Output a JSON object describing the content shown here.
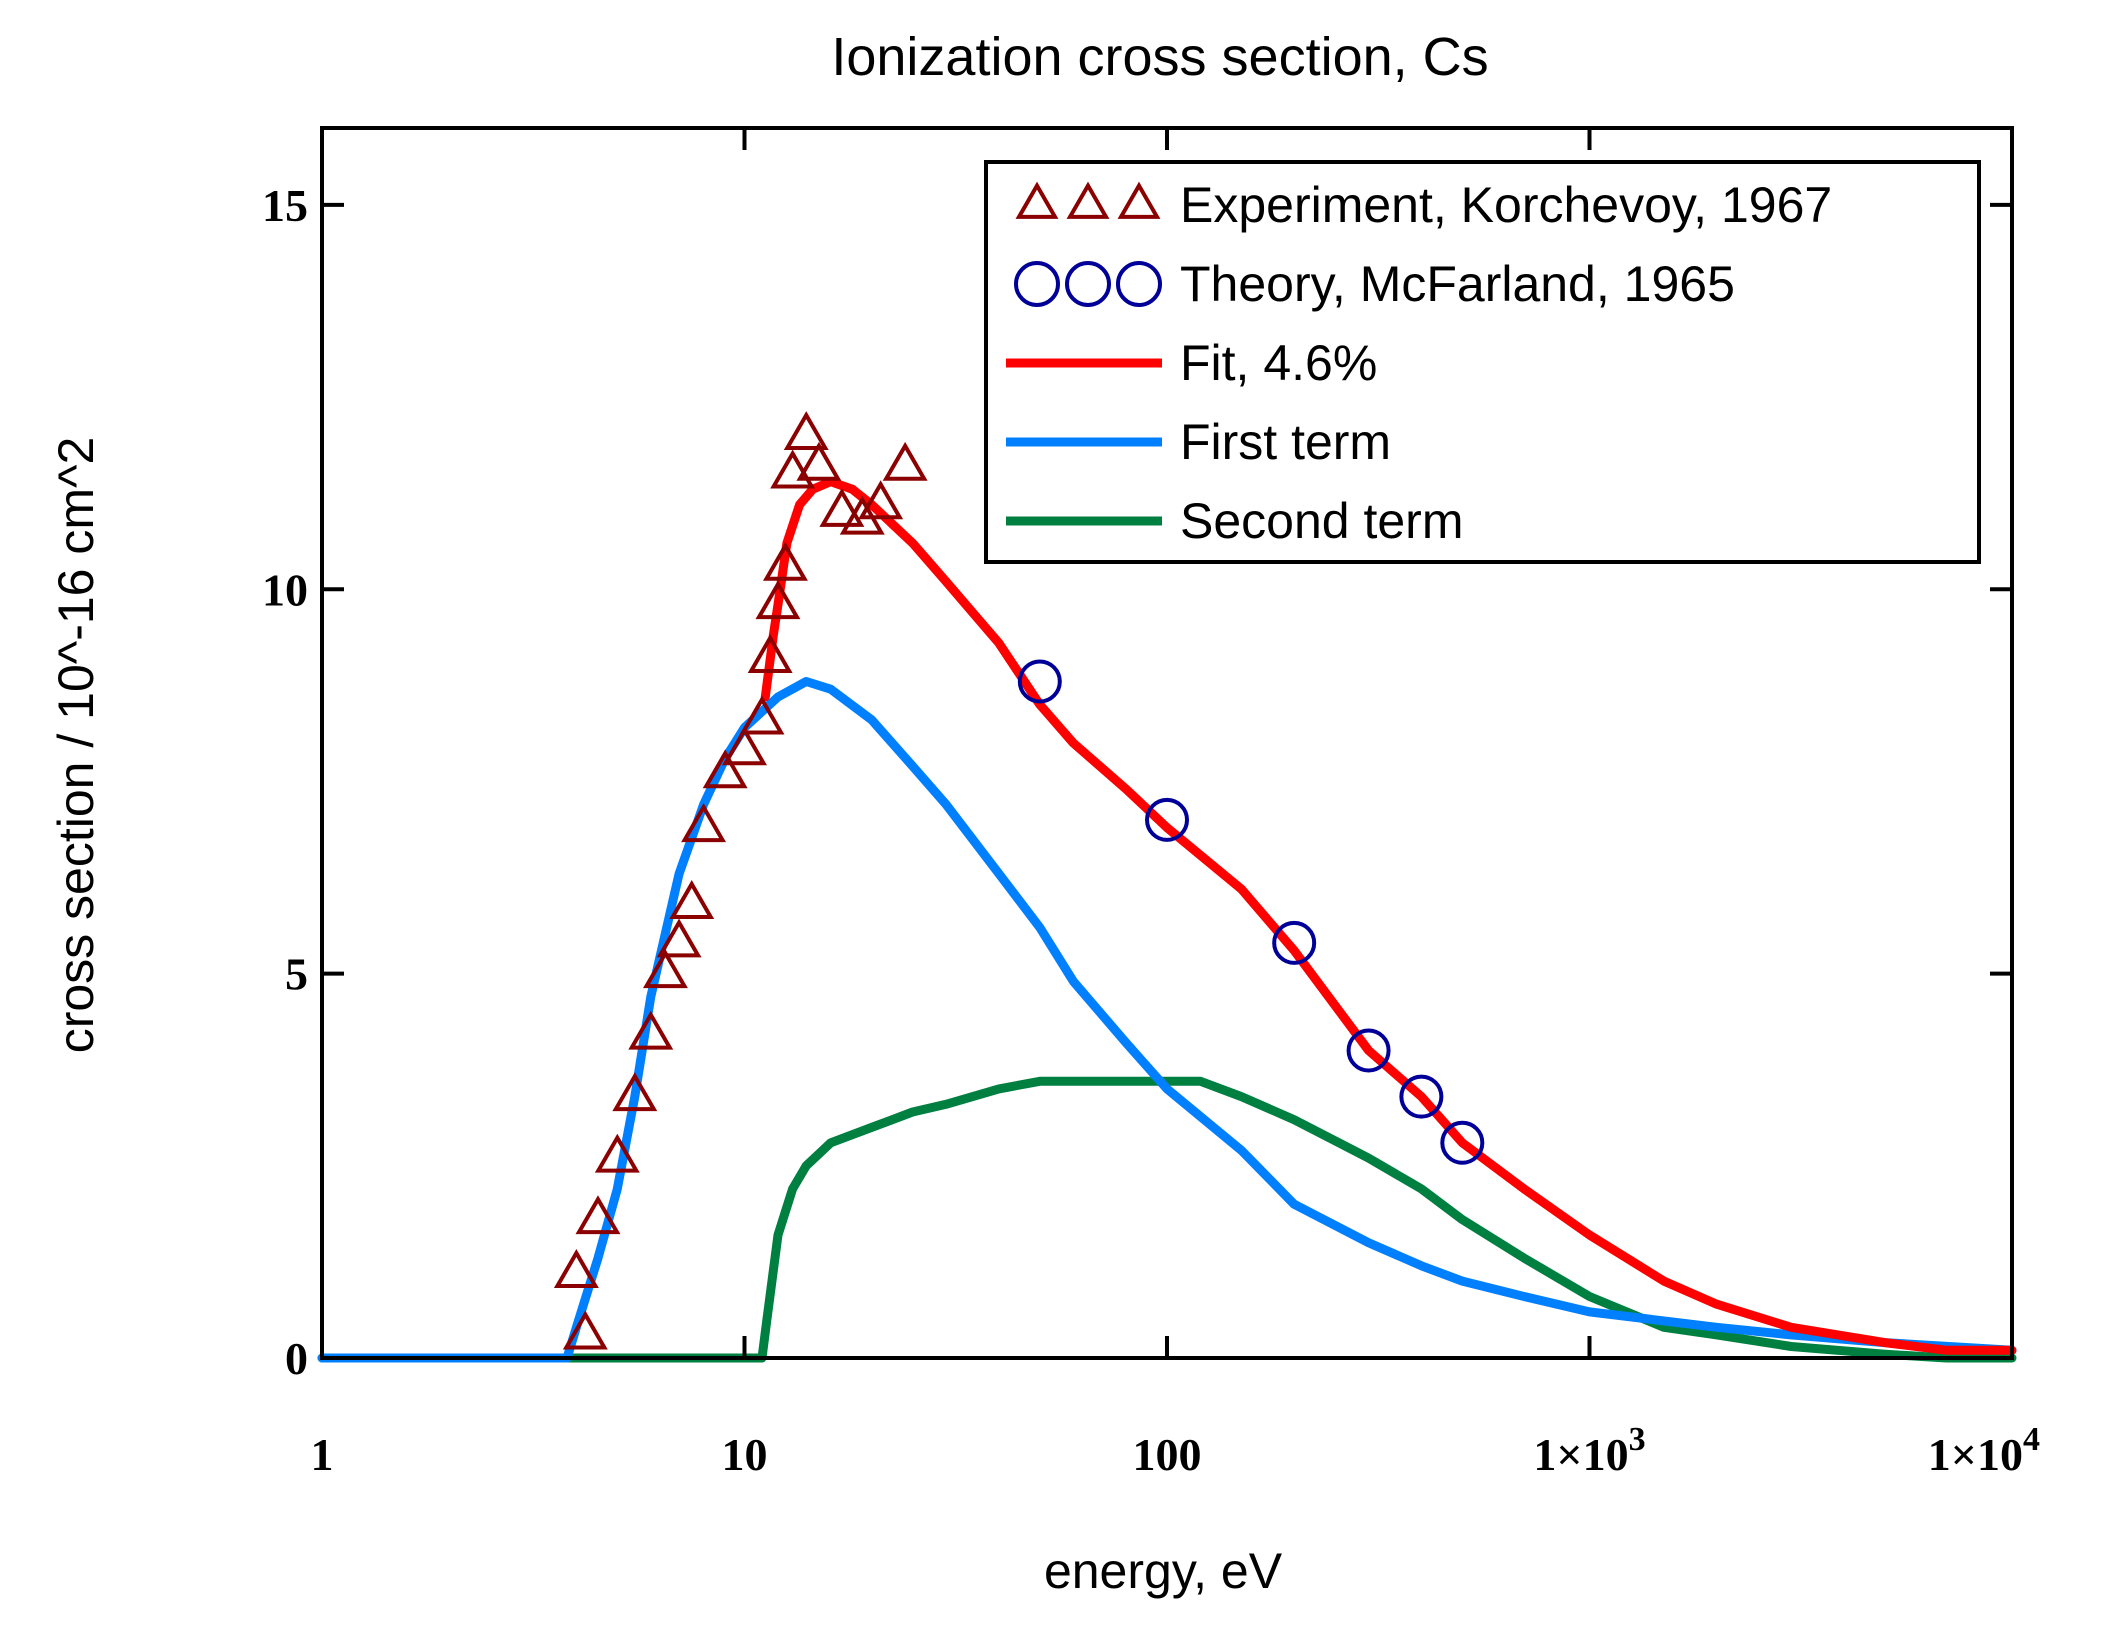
{
  "chart_data": {
    "type": "line",
    "title": "Ionization cross section, Cs",
    "xlabel": "energy, eV",
    "ylabel": "cross section / 10^-16 cm^2",
    "xscale": "log",
    "xlim": [
      1,
      10000
    ],
    "ylim": [
      0,
      16
    ],
    "grid": false,
    "legend_position": "top-right",
    "x_ticks": [
      {
        "value": 1,
        "label": "1"
      },
      {
        "value": 10,
        "label": "10"
      },
      {
        "value": 100,
        "label": "100"
      },
      {
        "value": 1000,
        "label": "1×10",
        "exp": "3"
      },
      {
        "value": 10000,
        "label": "1×10",
        "exp": "4"
      }
    ],
    "y_ticks": [
      {
        "value": 0,
        "label": "0"
      },
      {
        "value": 5,
        "label": "5"
      },
      {
        "value": 10,
        "label": "10"
      },
      {
        "value": 15,
        "label": "15"
      }
    ],
    "series": [
      {
        "name": "Experiment, Korchevoy, 1967",
        "kind": "markers",
        "marker": "triangle",
        "color": "#8b0000",
        "x": [
          4.2,
          4.0,
          4.5,
          5.0,
          5.5,
          6.0,
          6.5,
          7.0,
          7.5,
          8.0,
          9.0,
          10.0,
          11.0,
          11.5,
          12.0,
          12.5,
          13.0,
          14.0,
          15.0,
          17.0,
          19.0,
          21.0,
          24.0
        ],
        "y": [
          0.3,
          1.1,
          1.8,
          2.6,
          3.4,
          4.2,
          5.0,
          5.4,
          5.9,
          6.9,
          7.6,
          7.9,
          8.3,
          9.1,
          9.8,
          10.3,
          11.5,
          12.0,
          11.6,
          11.0,
          10.9,
          11.1,
          11.6
        ]
      },
      {
        "name": "Theory, McFarland, 1965",
        "kind": "markers",
        "marker": "circle",
        "color": "#000099",
        "x": [
          50,
          100,
          200,
          300,
          400,
          500
        ],
        "y": [
          8.8,
          7.0,
          5.4,
          4.0,
          3.4,
          2.8
        ]
      },
      {
        "name": "Fit, 4.6%",
        "kind": "line",
        "color": "#ff0000",
        "x": [
          11.2,
          11.7,
          12.0,
          12.6,
          13.5,
          14.5,
          16.0,
          18.0,
          20.0,
          25.0,
          30.0,
          40.0,
          50.0,
          60.0,
          80.0,
          100.0,
          150.0,
          200.0,
          300.0,
          400.0,
          500.0,
          700.0,
          1000.0,
          1500.0,
          2000.0,
          3000.0,
          5000.0,
          7000.0,
          10000.0
        ],
        "y": [
          8.6,
          9.4,
          9.8,
          10.6,
          11.1,
          11.3,
          11.4,
          11.3,
          11.1,
          10.6,
          10.1,
          9.3,
          8.5,
          8.0,
          7.4,
          6.9,
          6.1,
          5.3,
          4.0,
          3.4,
          2.8,
          2.2,
          1.6,
          1.0,
          0.7,
          0.4,
          0.2,
          0.1,
          0.1
        ]
      },
      {
        "name": "First term",
        "kind": "line",
        "color": "#0080ff",
        "x": [
          1.0,
          3.8,
          4.0,
          4.5,
          5.0,
          5.5,
          6.0,
          7.0,
          8.0,
          9.0,
          10.0,
          12.0,
          14.0,
          16.0,
          20.0,
          25.0,
          30.0,
          40.0,
          50.0,
          60.0,
          80.0,
          100.0,
          150.0,
          200.0,
          300.0,
          400.0,
          500.0,
          700.0,
          1000.0,
          2000.0,
          3000.0,
          5000.0,
          10000.0
        ],
        "y": [
          0.0,
          0.0,
          0.4,
          1.3,
          2.2,
          3.4,
          4.7,
          6.3,
          7.2,
          7.8,
          8.2,
          8.6,
          8.8,
          8.7,
          8.3,
          7.7,
          7.2,
          6.3,
          5.6,
          4.9,
          4.1,
          3.5,
          2.7,
          2.0,
          1.5,
          1.2,
          1.0,
          0.8,
          0.6,
          0.4,
          0.3,
          0.2,
          0.1
        ]
      },
      {
        "name": "Second term",
        "kind": "line",
        "color": "#008040",
        "x": [
          1.0,
          11.0,
          11.3,
          12.0,
          13.0,
          14.0,
          16.0,
          20.0,
          25.0,
          30.0,
          40.0,
          50.0,
          60.0,
          80.0,
          100.0,
          120.0,
          150.0,
          200.0,
          300.0,
          400.0,
          500.0,
          700.0,
          1000.0,
          1500.0,
          2000.0,
          3000.0,
          5000.0,
          7000.0,
          10000.0
        ],
        "y": [
          0.0,
          0.0,
          0.5,
          1.6,
          2.2,
          2.5,
          2.8,
          3.0,
          3.2,
          3.3,
          3.5,
          3.6,
          3.6,
          3.6,
          3.6,
          3.6,
          3.4,
          3.1,
          2.6,
          2.2,
          1.8,
          1.3,
          0.8,
          0.4,
          0.3,
          0.15,
          0.05,
          0.0,
          0.0
        ]
      }
    ]
  }
}
